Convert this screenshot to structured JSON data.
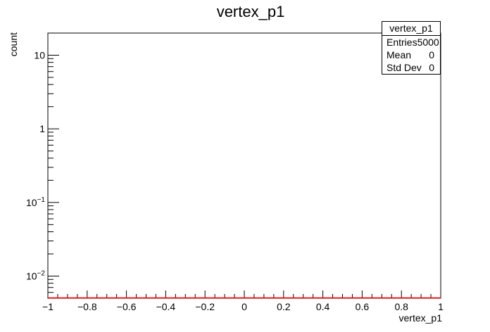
{
  "chart_data": {
    "type": "line",
    "title": "vertex_p1",
    "xlabel": "vertex_p1",
    "ylabel": "count",
    "xlim": [
      -1,
      1
    ],
    "ylim": [
      0.005,
      20
    ],
    "yscale": "log",
    "x_ticks": [
      "−1",
      "−0.8",
      "−0.6",
      "−0.4",
      "−0.2",
      "0",
      "0.2",
      "0.4",
      "0.6",
      "0.8",
      "1"
    ],
    "x_tick_values": [
      -1,
      -0.8,
      -0.6,
      -0.4,
      -0.2,
      0,
      0.2,
      0.4,
      0.6,
      0.8,
      1
    ],
    "y_ticks": [
      {
        "value": 10,
        "base": "10",
        "exp": ""
      },
      {
        "value": 1,
        "base": "1",
        "exp": ""
      },
      {
        "value": 0.1,
        "base": "10",
        "exp": "−1"
      },
      {
        "value": 0.01,
        "base": "10",
        "exp": "−2"
      }
    ],
    "series": [
      {
        "color": "#ff0000",
        "x": [
          -1,
          1
        ],
        "y": [
          0.005,
          0.005
        ]
      }
    ],
    "grid": false,
    "legend": "none"
  },
  "stats_box": {
    "title": "vertex_p1",
    "rows": [
      {
        "label": "Entries",
        "value": "5000"
      },
      {
        "label": "Mean",
        "value": "0"
      },
      {
        "label": "Std Dev",
        "value": "0"
      }
    ]
  }
}
